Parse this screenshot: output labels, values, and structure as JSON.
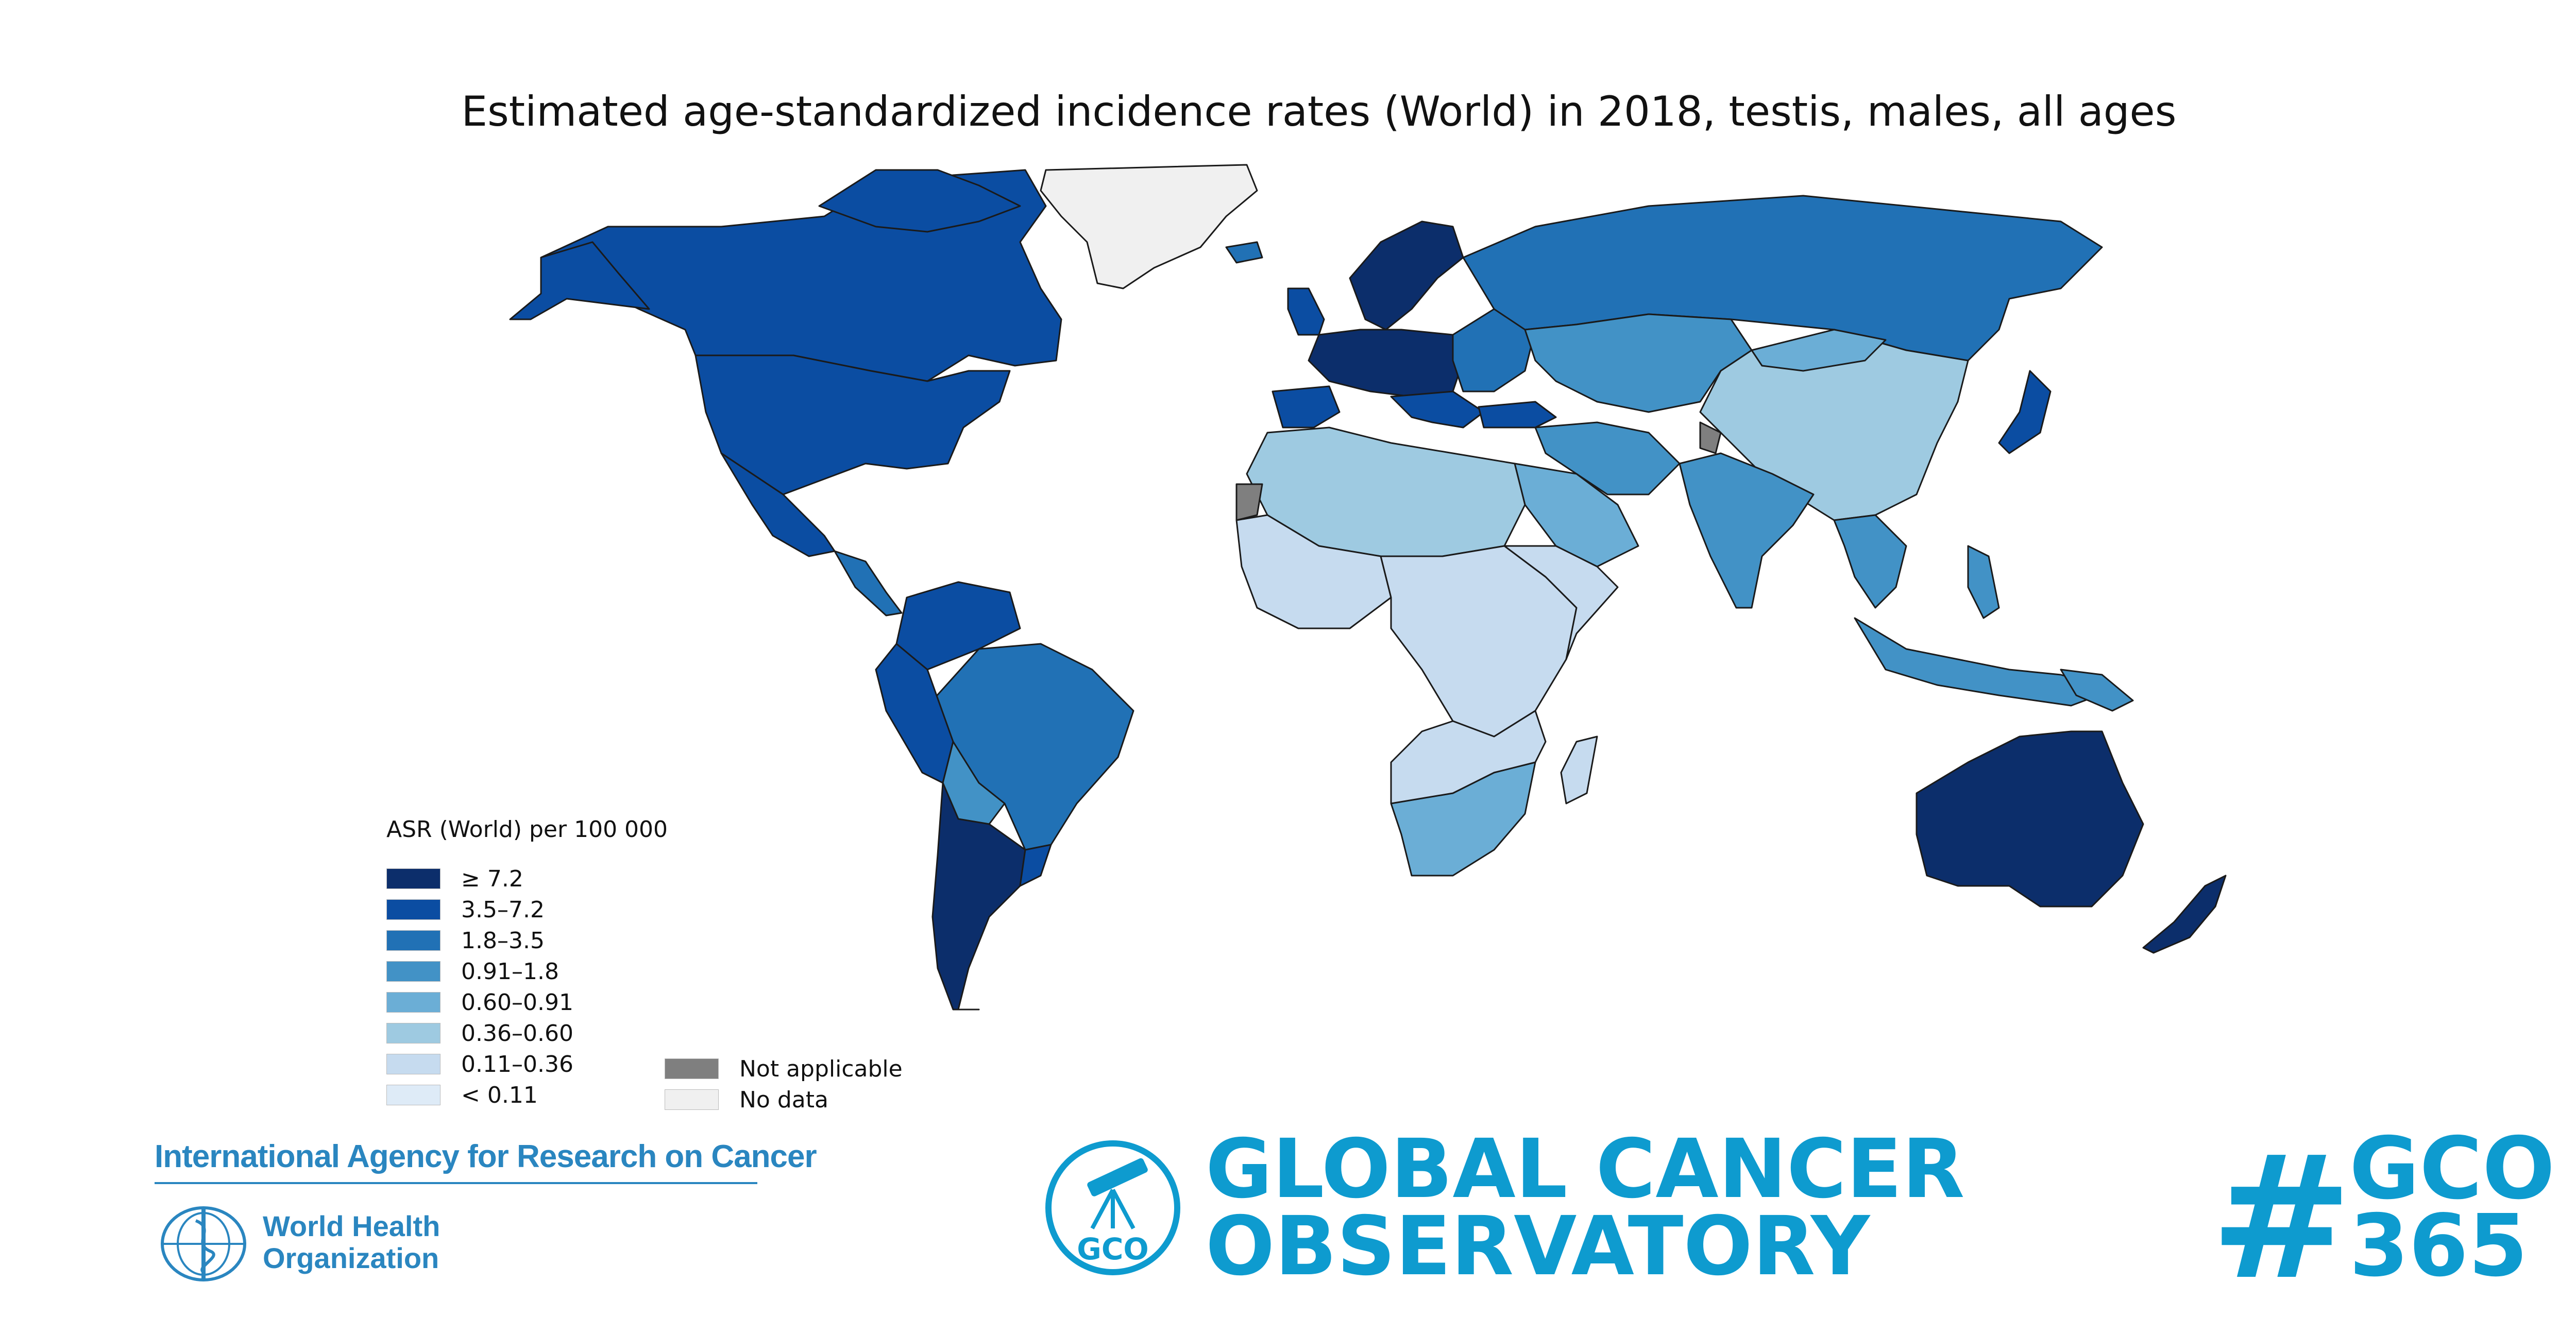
{
  "title": "Estimated age-standardized incidence rates (World) in 2018, testis, males, all ages",
  "legend": {
    "title": "ASR (World) per 100 000",
    "classes": [
      {
        "label": "≥ 7.2",
        "color": "#0c2e6b"
      },
      {
        "label": "3.5–7.2",
        "color": "#0b4da2"
      },
      {
        "label": "1.8–3.5",
        "color": "#2171b5"
      },
      {
        "label": "0.91–1.8",
        "color": "#4292c6"
      },
      {
        "label": "0.60–0.91",
        "color": "#6baed6"
      },
      {
        "label": "0.36–0.60",
        "color": "#9ecae1"
      },
      {
        "label": "0.11–0.36",
        "color": "#c6dbef"
      },
      {
        "label": "< 0.11",
        "color": "#deebf7"
      }
    ],
    "extra": [
      {
        "label": "Not applicable",
        "color": "#7f7f7f"
      },
      {
        "label": "No data",
        "color": "#f0f0f0"
      }
    ]
  },
  "footer": {
    "iarc": "International Agency for Research on Cancer",
    "who_line1": "World Health",
    "who_line2": "Organization",
    "gco_badge": "GCO",
    "gco_line1": "GLOBAL CANCER",
    "gco_line2": "OBSERVATORY",
    "hashtag_line1": "GCO",
    "hashtag_line2": "365"
  }
}
